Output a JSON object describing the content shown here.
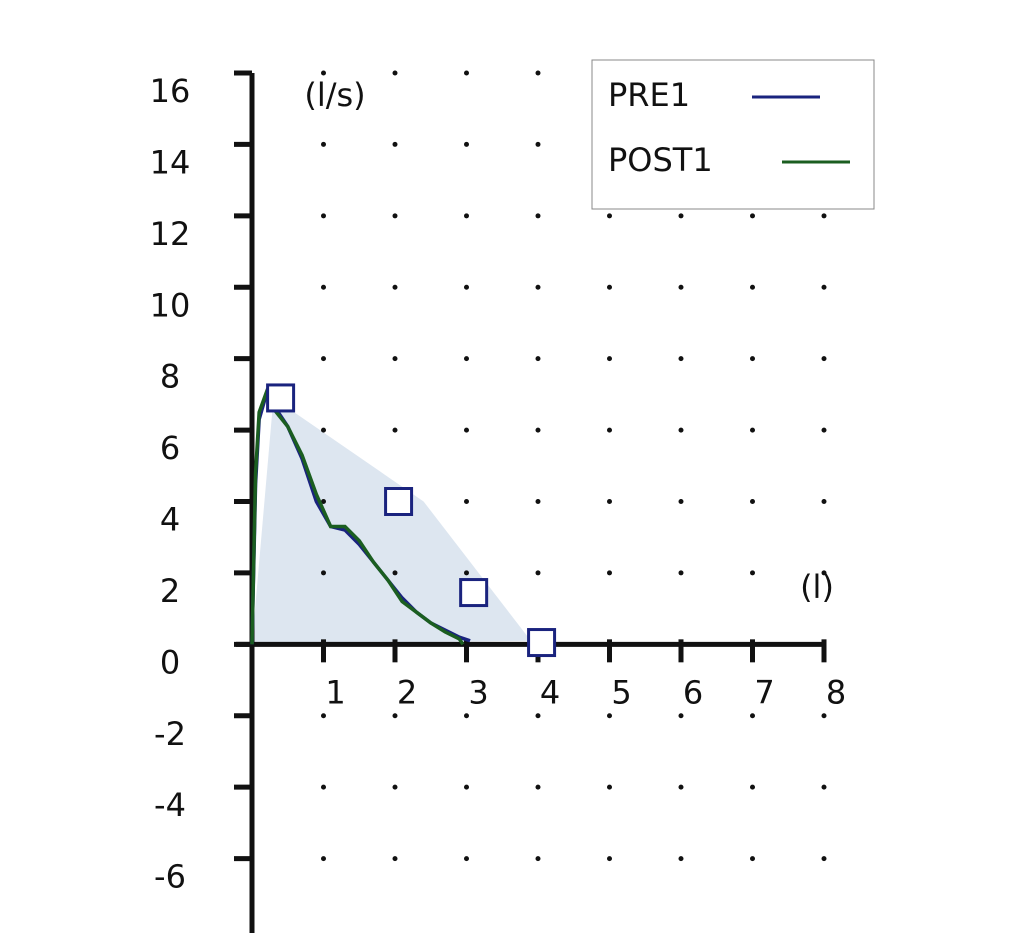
{
  "chart_data": {
    "type": "line",
    "x_label": "(l)",
    "y_label": "(l/s)",
    "xlim": [
      0,
      8
    ],
    "ylim": [
      -8,
      16
    ],
    "xticks": [
      1,
      2,
      3,
      4,
      5,
      6,
      7,
      8
    ],
    "yticks": [
      -6,
      -4,
      -2,
      0,
      2,
      4,
      6,
      8,
      10,
      12,
      14,
      16
    ],
    "grid": "dots",
    "legend": "upper right",
    "normal_area": {
      "color": "#dde6f0",
      "x": [
        0,
        0.3,
        2.4,
        3.9,
        0
      ],
      "y": [
        0,
        6.9,
        4.0,
        0.1,
        0
      ]
    },
    "predicted": {
      "color": "#1a237e",
      "x": [
        0.4,
        2.05,
        3.1,
        4.05
      ],
      "y": [
        6.9,
        4.0,
        1.45,
        0.05
      ]
    },
    "series": [
      {
        "name": "PRE1",
        "color": "#1a237e",
        "x": [
          0,
          0.05,
          0.1,
          0.2,
          0.3,
          0.5,
          0.7,
          0.9,
          1.1,
          1.3,
          1.5,
          1.7,
          1.9,
          2.1,
          2.3,
          2.5,
          2.7,
          2.9,
          3.05
        ],
        "values": [
          0,
          4.5,
          6.3,
          7.0,
          6.7,
          6.1,
          5.2,
          4.0,
          3.3,
          3.2,
          2.8,
          2.3,
          1.8,
          1.3,
          0.9,
          0.6,
          0.4,
          0.2,
          0.1
        ]
      },
      {
        "name": "POST1",
        "color": "#1b5e20",
        "x": [
          0,
          0.05,
          0.1,
          0.2,
          0.3,
          0.5,
          0.7,
          0.9,
          1.1,
          1.3,
          1.5,
          1.7,
          1.9,
          2.1,
          2.3,
          2.5,
          2.7,
          2.9,
          2.95
        ],
        "values": [
          0,
          4.8,
          6.5,
          7.05,
          6.6,
          6.1,
          5.3,
          4.2,
          3.3,
          3.3,
          2.9,
          2.3,
          1.8,
          1.2,
          0.9,
          0.6,
          0.35,
          0.15,
          0
        ]
      }
    ]
  }
}
